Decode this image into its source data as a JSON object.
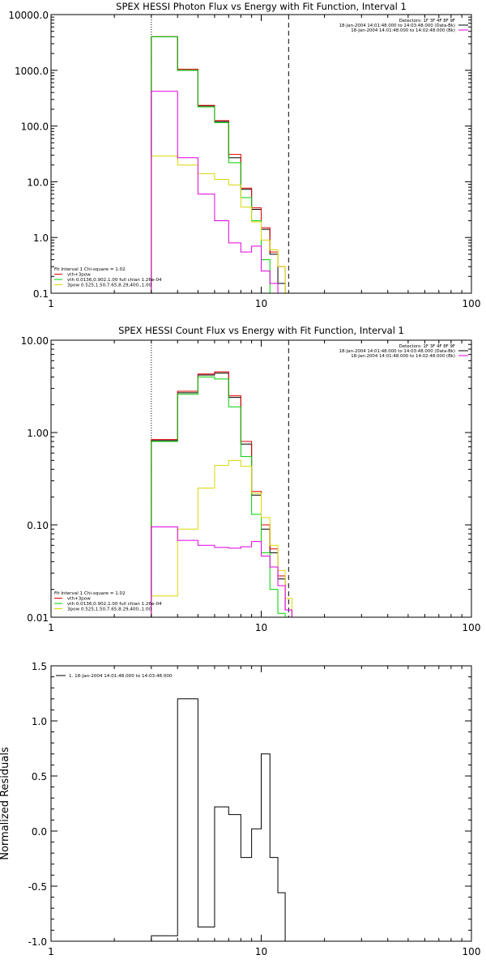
{
  "chart_data": [
    {
      "type": "line",
      "step": true,
      "title": "SPEX HESSI Photon Flux vs Energy with Fit Function, Interval 1",
      "xscale": "log",
      "yscale": "log",
      "xlim": [
        1,
        100
      ],
      "ylim": [
        0.1,
        10000
      ],
      "xticks": [
        "1",
        "10",
        "100"
      ],
      "yticks": [
        "0.1",
        "1.0",
        "10.0",
        "100.0",
        "1000.0",
        "10000.0"
      ],
      "vlines": [
        {
          "x": 3.0,
          "style": "dotted"
        },
        {
          "x": 13.5,
          "style": "dashed"
        }
      ],
      "legend_top": [
        "Detectors: 1F 3F 4F 8F 9F",
        "18-Jan-2004 14:01:48.000 to 14:03:48.000 (Data-Bk)",
        "18-Jan-2004 14:01:48.000 to 14:02:48.000 (Bk)"
      ],
      "legend_bottom": [
        "Fit Interval 1   Chi-square = 1.02",
        "vth+3pow",
        "vth 0.0136,0.902,1.00  full chian 1.26e-04",
        "3pow 0.525,1.50,7.65,8.29,400.,1.00"
      ],
      "edges": [
        3,
        4,
        5,
        6,
        7,
        8,
        9,
        10,
        11,
        12,
        13,
        14,
        15
      ],
      "series": [
        {
          "name": "18-Jan-2004 14:01:48.000 to 14:03:48.000 (Data-Bk)",
          "color": "#000000",
          "values": [
            4000,
            1000,
            230,
            120,
            27,
            7.3,
            3.2,
            1.4,
            0.5,
            0.15,
            0.1,
            0.1
          ]
        },
        {
          "color": "#e00000",
          "values": [
            4000,
            1050,
            235,
            125,
            31,
            7.7,
            3.4,
            1.5,
            0.55,
            0.3,
            0.1,
            0.1
          ]
        },
        {
          "color": "#00d000",
          "values": [
            4000,
            1000,
            220,
            115,
            22,
            5.2,
            2.0,
            0.4,
            0.1
          ]
        },
        {
          "color": "#d8d800",
          "values": [
            29,
            20,
            14,
            11,
            8.8,
            3.5,
            1.9,
            0.9,
            0.6,
            0.3,
            0.1
          ]
        },
        {
          "name": "18-Jan-2004 14:01:48.000 to 14:02:48.000 (Bk)",
          "color": "#e000e0",
          "values": [
            420,
            27,
            6.0,
            2.0,
            0.8,
            0.55,
            0.7,
            0.25,
            0.15,
            0.1
          ]
        }
      ]
    },
    {
      "type": "line",
      "step": true,
      "title": "SPEX HESSI Count Flux vs Energy with Fit Function, Interval 1",
      "xscale": "log",
      "yscale": "log",
      "xlim": [
        1,
        100
      ],
      "ylim": [
        0.01,
        10
      ],
      "xticks": [
        "1",
        "10",
        "100"
      ],
      "yticks": [
        "0.01",
        "0.10",
        "1.00",
        "10.00"
      ],
      "vlines": [
        {
          "x": 3.0,
          "style": "dotted"
        },
        {
          "x": 13.5,
          "style": "dashed"
        }
      ],
      "legend_top": [
        "Detectors: 1F 3F 4F 8F 9F",
        "18-Jan-2004 14:01:48.000 to 14:03:48.000 (Data-Bk)",
        "18-Jan-2004 14:01:48.000 to 14:02:48.000 (Bk)"
      ],
      "legend_bottom": [
        "Fit Interval 1   Chi-square = 1.02",
        "vth+3pow",
        "vth 0.0136,0.902,1.00  full chian 1.26e-04",
        "3pow 0.525,1.50,7.65,8.29,400.,1.00"
      ],
      "edges": [
        3,
        4,
        5,
        6,
        7,
        8,
        9,
        10,
        11,
        12,
        13,
        14,
        15
      ],
      "series": [
        {
          "color": "#000000",
          "values": [
            0.82,
            2.7,
            4.2,
            4.4,
            2.4,
            0.75,
            0.21,
            0.09,
            0.05,
            0.026,
            0.012,
            0.01
          ]
        },
        {
          "color": "#e00000",
          "values": [
            0.84,
            2.8,
            4.3,
            4.55,
            2.5,
            0.8,
            0.23,
            0.1,
            0.055,
            0.028,
            0.012,
            0.01
          ]
        },
        {
          "color": "#00d000",
          "values": [
            0.8,
            2.6,
            4.0,
            3.8,
            1.9,
            0.55,
            0.13,
            0.05,
            0.02,
            0.011
          ]
        },
        {
          "color": "#d8d800",
          "values": [
            0.017,
            0.09,
            0.25,
            0.44,
            0.5,
            0.43,
            0.22,
            0.12,
            0.06,
            0.032,
            0.016,
            0.01
          ]
        },
        {
          "color": "#e000e0",
          "values": [
            0.095,
            0.068,
            0.06,
            0.057,
            0.056,
            0.058,
            0.066,
            0.046,
            0.035,
            0.022,
            0.012,
            0.01
          ]
        }
      ]
    },
    {
      "type": "line",
      "step": true,
      "title": "",
      "ylabel": "Normalized Residuals",
      "xscale": "log",
      "yscale": "linear",
      "xlim": [
        1,
        100
      ],
      "ylim": [
        -1.0,
        1.5
      ],
      "xticks": [
        "1",
        "10",
        "100"
      ],
      "yticks": [
        "-1.0",
        "-0.5",
        "0.0",
        "0.5",
        "1.0",
        "1.5"
      ],
      "legend": [
        "1. 18-Jan-2004 14:01:48.000 to 14:03:48.000"
      ],
      "edges": [
        3,
        4,
        5,
        6,
        7,
        8,
        9,
        10,
        11,
        12,
        13
      ],
      "series": [
        {
          "name": "1. 18-Jan-2004 14:01:48.000 to 14:03:48.000",
          "color": "#000000",
          "values": [
            -0.95,
            1.2,
            -0.87,
            0.22,
            0.15,
            -0.24,
            0.02,
            0.7,
            -0.24,
            -0.56
          ]
        }
      ]
    }
  ]
}
